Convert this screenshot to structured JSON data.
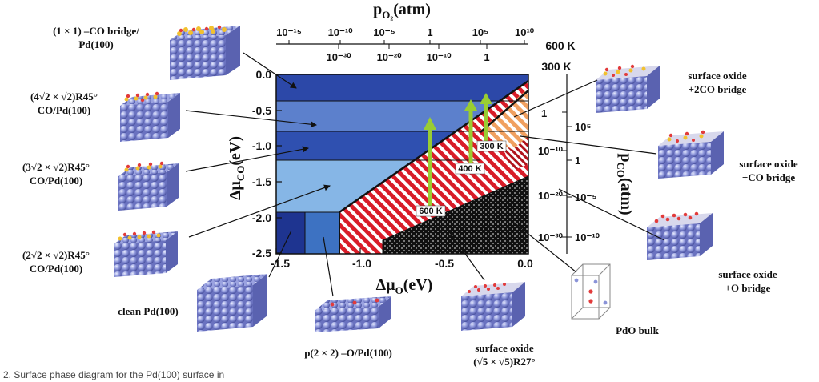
{
  "top_axis": {
    "title": "p",
    "title_sub": "O₂",
    "title_unit": "(atm)",
    "upper_ticks": [
      "10⁻¹⁵",
      "10⁻¹⁰",
      "10⁻⁵",
      "1",
      "10⁵",
      "10¹⁰"
    ],
    "lower_ticks": [
      "10⁻³⁰",
      "10⁻²⁰",
      "10⁻¹⁰",
      "1"
    ],
    "upper_temp": "600 K",
    "lower_temp": "300 K"
  },
  "right_axis": {
    "title": "p",
    "title_sub": "CO",
    "title_unit": "(atm)",
    "inner_ticks": [
      "1",
      "10⁻¹⁰",
      "10⁻²⁰",
      "10⁻³⁰"
    ],
    "outer_ticks": [
      "10⁵",
      "1",
      "10⁻⁵",
      "10⁻¹⁰"
    ]
  },
  "x_axis": {
    "title": "Δμ",
    "title_sub": "O",
    "title_unit": "(eV)",
    "ticks": [
      "-1.5",
      "-1.0",
      "-0.5",
      "0.0"
    ]
  },
  "y_axis": {
    "title": "Δμ",
    "title_sub": "CO",
    "title_unit": "(eV)",
    "ticks": [
      "0.0",
      "-0.5",
      "-1.0",
      "-1.5",
      "-2.0",
      "-2.5"
    ]
  },
  "arrow_labels": [
    "300 K",
    "400 K",
    "600 K"
  ],
  "colors": {
    "band_1": "#2c48a8",
    "band_2": "#5c80cc",
    "band_3": "#2f50b0",
    "band_4": "#86b6e6",
    "clean": "#1e3490",
    "p2x2": "#3d72c2",
    "oxide": "#d81c28",
    "oxide_co": "#c4181f",
    "oxide_2co": "#f0a060",
    "pdo": "#101010",
    "arrow": "#9acd32"
  },
  "labels": {
    "co_bridge_1x1_a": "(1 × 1) –CO bridge/",
    "co_bridge_1x1_b": "Pd(100)",
    "co_4r2_a": "(4√2 × √2)R45°",
    "co_4r2_b": "CO/Pd(100)",
    "co_3r2_a": "(3√2 × √2)R45°",
    "co_3r2_b": "CO/Pd(100)",
    "co_2r2_a": "(2√2 × √2)R45°",
    "co_2r2_b": "CO/Pd(100)",
    "clean": "clean Pd(100)",
    "p2x2": "p(2 × 2) –O/Pd(100)",
    "oxide_a": "surface oxide",
    "oxide_b": "(√5 × √5)R27°",
    "pdo": "PdO bulk",
    "oxide_o_a": "surface oxide",
    "oxide_o_b": "+O bridge",
    "oxide_co_a": "surface oxide",
    "oxide_co_b": "+CO bridge",
    "oxide_2co_a": "surface oxide",
    "oxide_2co_b": "+2CO bridge"
  },
  "caption": "2. Surface phase diagram for the Pd(100) surface in "
}
